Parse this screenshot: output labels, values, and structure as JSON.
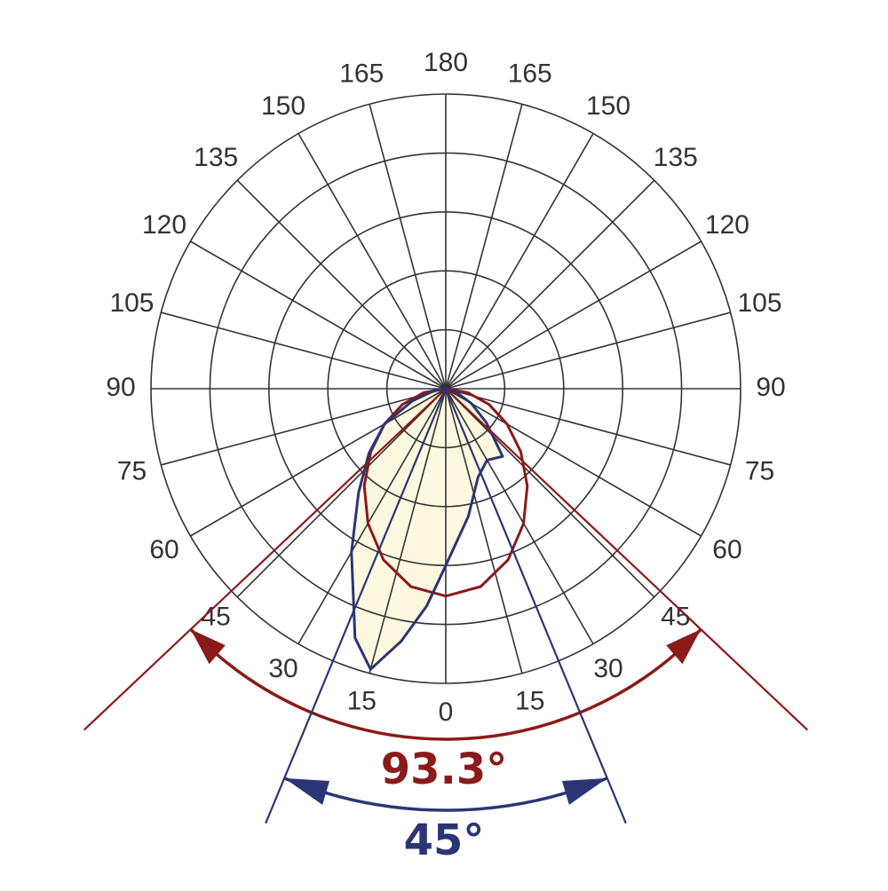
{
  "chart_data": {
    "type": "polar",
    "angle_ticks": [
      0,
      15,
      30,
      45,
      60,
      75,
      90,
      105,
      120,
      135,
      150,
      165,
      180
    ],
    "rlim": [
      0,
      5
    ],
    "series": [
      {
        "color": "#8b1a1a",
        "fill": "none",
        "angles": [
          -90,
          -80,
          -70,
          -60,
          -50,
          -40,
          -30,
          -20,
          -10,
          0,
          10,
          20,
          30,
          40,
          50,
          60,
          70,
          80,
          90
        ],
        "values": [
          0,
          0.38,
          0.78,
          1.2,
          1.66,
          2.15,
          2.64,
          3.09,
          3.41,
          3.52,
          3.41,
          3.09,
          2.64,
          2.15,
          1.66,
          1.2,
          0.78,
          0.38,
          0
        ]
      },
      {
        "color": "#2b3576",
        "fill": "#fdf8e0",
        "angles": [
          -80,
          -70,
          -60,
          -50,
          -40,
          -30,
          -20,
          -15,
          -10,
          -5,
          0,
          10,
          20,
          30,
          40,
          50,
          60,
          70
        ],
        "values": [
          0.2,
          0.6,
          1.2,
          1.7,
          2.3,
          3.2,
          4.5,
          4.93,
          4.35,
          3.7,
          3.0,
          2.2,
          1.6,
          1.4,
          1.5,
          0.9,
          0.5,
          0.2
        ]
      }
    ],
    "beam_angles": [
      {
        "value": 93.3,
        "label": "93.3°",
        "color": "#8b1a1a"
      },
      {
        "value": 45,
        "label": "45°",
        "color": "#2b3576"
      }
    ]
  }
}
